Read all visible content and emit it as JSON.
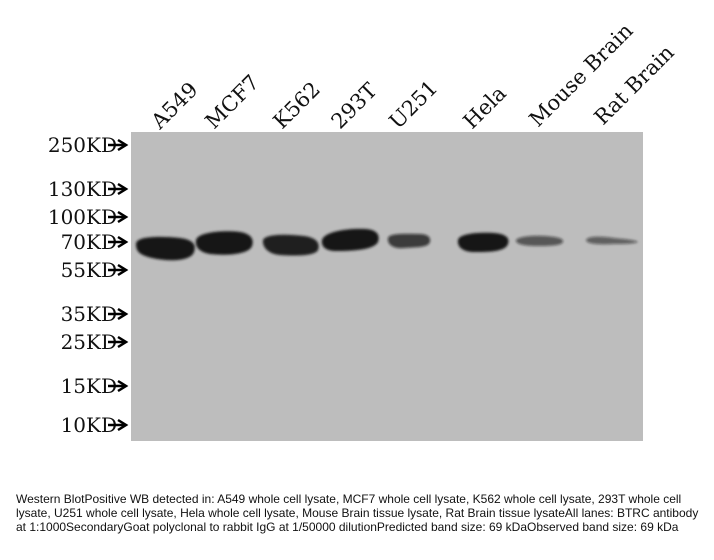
{
  "blot": {
    "background_color": "#bdbdbd",
    "band_color": "#141414",
    "lanes": [
      {
        "label": "A549"
      },
      {
        "label": "MCF7"
      },
      {
        "label": "K562"
      },
      {
        "label": "293T"
      },
      {
        "label": "U251"
      },
      {
        "label": "Hela"
      },
      {
        "label": "Mouse Brain"
      },
      {
        "label": "Rat Brain"
      }
    ],
    "markers": [
      {
        "label": "250KD"
      },
      {
        "label": "130KD"
      },
      {
        "label": "100KD"
      },
      {
        "label": "70KD"
      },
      {
        "label": "55KD"
      },
      {
        "label": "35KD"
      },
      {
        "label": "25KD"
      },
      {
        "label": "15KD"
      },
      {
        "label": "10KD"
      }
    ],
    "band_intensity": [
      1.0,
      1.0,
      0.95,
      1.0,
      0.75,
      1.0,
      0.6,
      0.55
    ]
  },
  "caption": "Western BlotPositive WB detected in: A549 whole cell lysate, MCF7 whole cell lysate, K562 whole cell lysate, 293T whole cell lysate, U251 whole cell lysate, Hela whole cell lysate, Mouse Brain tissue lysate, Rat Brain tissue lysateAll lanes: BTRC antibody at 1:1000SecondaryGoat polyclonal to rabbit IgG at 1/50000 dilutionPredicted band size: 69 kDaObserved band size: 69 kDa"
}
